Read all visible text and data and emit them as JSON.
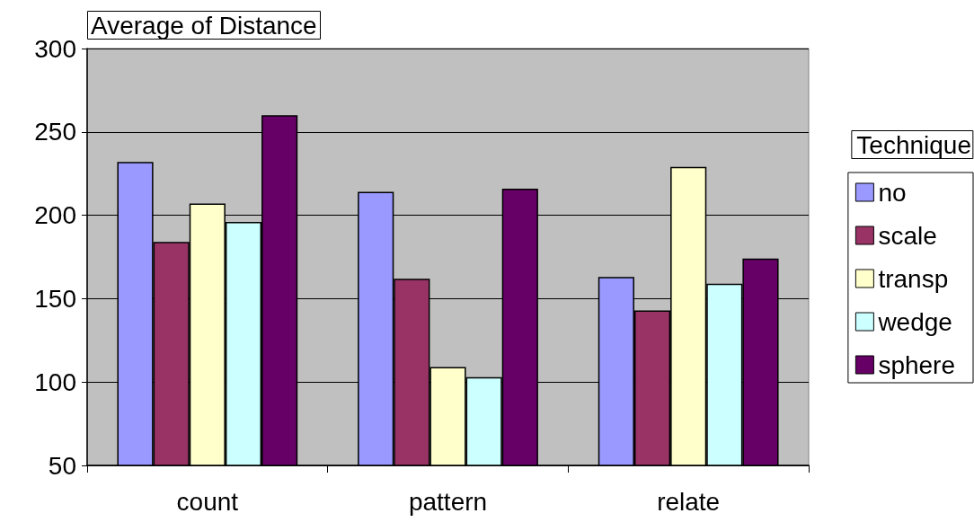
{
  "chart_data": {
    "type": "bar",
    "title": "Average of Distance",
    "legend_title": "Technique",
    "categories": [
      "count",
      "pattern",
      "relate"
    ],
    "series": [
      {
        "name": "no",
        "color": "#9999ff",
        "values": [
          232,
          214,
          163
        ]
      },
      {
        "name": "scale",
        "color": "#993366",
        "values": [
          184,
          162,
          143
        ]
      },
      {
        "name": "transp",
        "color": "#ffffcc",
        "values": [
          207,
          109,
          229
        ]
      },
      {
        "name": "wedge",
        "color": "#ccffff",
        "values": [
          196,
          103,
          159
        ]
      },
      {
        "name": "sphere",
        "color": "#660066",
        "values": [
          260,
          216,
          174
        ]
      }
    ],
    "ylim": [
      50,
      300
    ],
    "yticks": [
      50,
      100,
      150,
      200,
      250,
      300
    ],
    "grid": "y",
    "legend": "right"
  }
}
